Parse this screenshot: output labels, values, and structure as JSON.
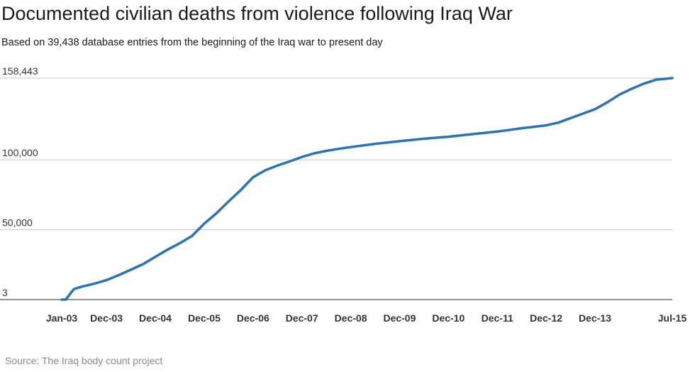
{
  "title": "Documented civilian deaths from violence following Iraq War",
  "subtitle": "Based on 39,438 database entries from the beginning of the Iraq war to present day",
  "source": "Source: The Iraq body count project",
  "colors": {
    "line": "#2a74b5",
    "grid": "#c8c8c8",
    "baseline": "#555555"
  },
  "chart_data": {
    "type": "line",
    "title": "Documented civilian deaths from violence following Iraq War",
    "subtitle": "Based on 39,438 database entries from the beginning of the Iraq war to present day",
    "xlabel": "",
    "ylabel": "",
    "yticks": [
      3,
      50000,
      100000,
      158443
    ],
    "ytick_labels": [
      "3",
      "50,000",
      "100,000",
      "158,443"
    ],
    "ylim": [
      3,
      158443
    ],
    "xlim": [
      "2003-01",
      "2015-07"
    ],
    "xticks": [
      "2003-01",
      "2003-12",
      "2004-12",
      "2005-12",
      "2006-12",
      "2007-12",
      "2008-12",
      "2009-12",
      "2010-12",
      "2011-12",
      "2012-12",
      "2013-12",
      "2015-07"
    ],
    "xtick_labels": [
      "Jan-03",
      "Dec-03",
      "Dec-04",
      "Dec-05",
      "Dec-06",
      "Dec-07",
      "Dec-08",
      "Dec-09",
      "Dec-10",
      "Dec-11",
      "Dec-12",
      "Dec-13",
      "Jul-15"
    ],
    "grid": true,
    "legend": "none",
    "series": [
      {
        "x": [
          "2003-01",
          "2003-02",
          "2003-04",
          "2003-06",
          "2003-09",
          "2003-12",
          "2004-03",
          "2004-06",
          "2004-09",
          "2004-12",
          "2005-03",
          "2005-06",
          "2005-09",
          "2005-12",
          "2006-03",
          "2006-06",
          "2006-09",
          "2006-12",
          "2007-03",
          "2007-06",
          "2007-09",
          "2007-12",
          "2008-03",
          "2008-06",
          "2008-09",
          "2008-12",
          "2009-06",
          "2009-12",
          "2010-06",
          "2010-12",
          "2011-06",
          "2011-12",
          "2012-06",
          "2012-12",
          "2013-03",
          "2013-06",
          "2013-09",
          "2013-12",
          "2014-03",
          "2014-06",
          "2014-09",
          "2014-12",
          "2015-03",
          "2015-07"
        ],
        "y": [
          3,
          3,
          7500,
          9300,
          11400,
          13900,
          17500,
          21400,
          25400,
          30600,
          35700,
          40300,
          45500,
          54300,
          61700,
          70200,
          78400,
          87500,
          92500,
          95900,
          98800,
          102000,
          104600,
          106400,
          107800,
          109100,
          111400,
          113300,
          115100,
          116500,
          118400,
          120200,
          122600,
          124600,
          126600,
          129800,
          133000,
          136200,
          141100,
          146600,
          150800,
          154500,
          157300,
          158443
        ]
      }
    ]
  }
}
